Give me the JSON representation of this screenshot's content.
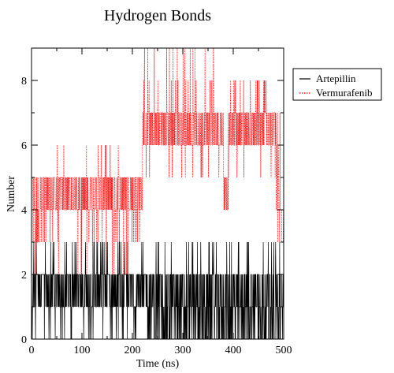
{
  "chart_data": {
    "type": "line",
    "title": "Hydrogen Bonds",
    "xlabel": "Time (ns)",
    "ylabel": "Number",
    "xlim": [
      0,
      500
    ],
    "ylim": [
      0,
      9
    ],
    "x_ticks": [
      "0",
      "100",
      "200",
      "300",
      "400",
      "500"
    ],
    "y_ticks": [
      "0",
      "2",
      "4",
      "6",
      "8"
    ],
    "legend_position": "right, outside plot",
    "series": [
      {
        "name": "Artepillin",
        "color": "#000000",
        "style": "solid",
        "segments": [
          {
            "x": [
              0,
              70
            ],
            "low": 0,
            "high": 3,
            "typical_low": 1,
            "typical_high": 2
          },
          {
            "x": [
              70,
              230
            ],
            "low": 0,
            "high": 3,
            "typical_low": 1,
            "typical_high": 2
          },
          {
            "x": [
              230,
              380
            ],
            "low": 0,
            "high": 3,
            "typical_low": 0,
            "typical_high": 2
          },
          {
            "x": [
              380,
              500
            ],
            "low": 0,
            "high": 3,
            "typical_low": 0,
            "typical_high": 2
          }
        ]
      },
      {
        "name": "Vermurafenib",
        "color": "#ff0000",
        "style": "dotted",
        "segments": [
          {
            "x": [
              0,
              30
            ],
            "low": 2,
            "high": 5,
            "typical_low": 3,
            "typical_high": 5
          },
          {
            "x": [
              30,
              220
            ],
            "low": 2,
            "high": 6,
            "typical_low": 4,
            "typical_high": 5
          },
          {
            "x": [
              220,
              380
            ],
            "low": 5,
            "high": 9,
            "typical_low": 6,
            "typical_high": 7
          },
          {
            "x": [
              380,
              390
            ],
            "low": 4,
            "high": 7,
            "typical_low": 4,
            "typical_high": 5
          },
          {
            "x": [
              390,
              485
            ],
            "low": 5,
            "high": 8,
            "typical_low": 6,
            "typical_high": 7
          },
          {
            "x": [
              485,
              500
            ],
            "low": 3,
            "high": 7,
            "typical_low": 3,
            "typical_high": 5
          }
        ]
      }
    ]
  }
}
